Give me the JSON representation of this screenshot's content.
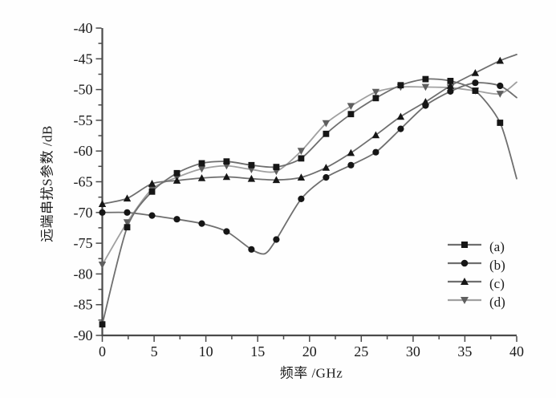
{
  "chart_data": {
    "type": "line",
    "title": "",
    "xlabel": "频率 /GHz",
    "ylabel": "远端串扰S参数 /dB",
    "xlim": [
      0,
      40
    ],
    "ylim": [
      -90,
      -40
    ],
    "x_major_ticks": [
      0,
      5,
      10,
      15,
      20,
      25,
      30,
      35,
      40
    ],
    "x_tick_labels": [
      "0",
      "5",
      "10",
      "15",
      "20",
      "25",
      "30",
      "35",
      "40"
    ],
    "x_minor_step": 2.5,
    "y_major_ticks": [
      -40,
      -45,
      -50,
      -55,
      -60,
      -65,
      -70,
      -75,
      -80,
      -85,
      -90
    ],
    "y_tick_labels": [
      "-40",
      "-45",
      "-50",
      "-55",
      "-60",
      "-65",
      "-70",
      "-75",
      "-80",
      "-85",
      "-90"
    ],
    "y_minor_step": 2.5,
    "grid": false,
    "legend_position": "inside-lower-right",
    "colors": {
      "axis": "#4a4a4a",
      "tick_text": "#1b1b1b",
      "dark_marker": "#161616",
      "dark_line": "#6f6f6f",
      "gray_marker": "#5f5f5f",
      "gray_line": "#a0a0a0"
    },
    "series": [
      {
        "name": "(a)",
        "marker": "square",
        "line_color": "#6f6f6f",
        "marker_color": "#161616",
        "markers": [
          [
            0,
            -88.2
          ],
          [
            2.4,
            -72.4
          ],
          [
            4.8,
            -66.6
          ],
          [
            7.2,
            -63.6
          ],
          [
            9.6,
            -62.0
          ],
          [
            12,
            -61.7
          ],
          [
            14.4,
            -62.3
          ],
          [
            16.8,
            -62.6
          ],
          [
            19.2,
            -61.2
          ],
          [
            21.6,
            -57.2
          ],
          [
            24,
            -54.0
          ],
          [
            26.4,
            -51.4
          ],
          [
            28.8,
            -49.3
          ],
          [
            31.2,
            -48.3
          ],
          [
            33.6,
            -48.6
          ],
          [
            36,
            -50.2
          ],
          [
            38.4,
            -55.4
          ]
        ],
        "line": [
          [
            0,
            -88.2
          ],
          [
            2.4,
            -72.4
          ],
          [
            4.8,
            -66.6
          ],
          [
            7.2,
            -63.6
          ],
          [
            9.6,
            -62.0
          ],
          [
            12,
            -61.7
          ],
          [
            14.4,
            -62.3
          ],
          [
            16.8,
            -62.6
          ],
          [
            19.2,
            -61.2
          ],
          [
            21.6,
            -57.2
          ],
          [
            24,
            -54.0
          ],
          [
            26.4,
            -51.4
          ],
          [
            28.8,
            -49.3
          ],
          [
            31.2,
            -48.3
          ],
          [
            33.6,
            -48.6
          ],
          [
            36,
            -50.2
          ],
          [
            38.4,
            -55.4
          ],
          [
            40,
            -64.5
          ]
        ]
      },
      {
        "name": "(b)",
        "marker": "circle",
        "line_color": "#6f6f6f",
        "marker_color": "#161616",
        "markers": [
          [
            0,
            -70.0
          ],
          [
            2.4,
            -70.0
          ],
          [
            4.8,
            -70.5
          ],
          [
            7.2,
            -71.1
          ],
          [
            9.6,
            -71.8
          ],
          [
            12,
            -73.1
          ],
          [
            14.4,
            -76.0
          ],
          [
            16.8,
            -74.4
          ],
          [
            19.2,
            -67.8
          ],
          [
            21.6,
            -64.3
          ],
          [
            24,
            -62.3
          ],
          [
            26.4,
            -60.2
          ],
          [
            28.8,
            -56.4
          ],
          [
            31.2,
            -52.6
          ],
          [
            33.6,
            -50.3
          ],
          [
            36,
            -48.9
          ],
          [
            38.4,
            -49.4
          ]
        ],
        "line": [
          [
            0,
            -70.0
          ],
          [
            2.4,
            -70.0
          ],
          [
            4.8,
            -70.5
          ],
          [
            7.2,
            -71.1
          ],
          [
            9.6,
            -71.8
          ],
          [
            12,
            -73.1
          ],
          [
            14.4,
            -76.0
          ],
          [
            15.7,
            -76.7
          ],
          [
            16.8,
            -74.4
          ],
          [
            19.2,
            -67.8
          ],
          [
            21.6,
            -64.3
          ],
          [
            24,
            -62.3
          ],
          [
            26.4,
            -60.2
          ],
          [
            28.8,
            -56.4
          ],
          [
            31.2,
            -52.6
          ],
          [
            33.6,
            -50.3
          ],
          [
            36,
            -48.9
          ],
          [
            38.4,
            -49.4
          ],
          [
            40,
            -51.3
          ]
        ]
      },
      {
        "name": "(c)",
        "marker": "triangle-up",
        "line_color": "#6f6f6f",
        "marker_color": "#161616",
        "markers": [
          [
            0,
            -68.6
          ],
          [
            2.4,
            -67.7
          ],
          [
            4.8,
            -65.3
          ],
          [
            7.2,
            -64.8
          ],
          [
            9.6,
            -64.4
          ],
          [
            12,
            -64.2
          ],
          [
            14.4,
            -64.5
          ],
          [
            16.8,
            -64.7
          ],
          [
            19.2,
            -64.3
          ],
          [
            21.6,
            -62.7
          ],
          [
            24,
            -60.3
          ],
          [
            26.4,
            -57.4
          ],
          [
            28.8,
            -54.4
          ],
          [
            31.2,
            -52.0
          ],
          [
            33.6,
            -49.4
          ],
          [
            36,
            -47.3
          ],
          [
            38.4,
            -45.3
          ]
        ],
        "line": [
          [
            0,
            -68.6
          ],
          [
            2.4,
            -67.7
          ],
          [
            4.8,
            -65.3
          ],
          [
            7.2,
            -64.8
          ],
          [
            9.6,
            -64.4
          ],
          [
            12,
            -64.2
          ],
          [
            14.4,
            -64.5
          ],
          [
            16.8,
            -64.7
          ],
          [
            19.2,
            -64.3
          ],
          [
            21.6,
            -62.7
          ],
          [
            24,
            -60.3
          ],
          [
            26.4,
            -57.4
          ],
          [
            28.8,
            -54.4
          ],
          [
            31.2,
            -52.0
          ],
          [
            33.6,
            -49.4
          ],
          [
            36,
            -47.3
          ],
          [
            38.4,
            -45.3
          ],
          [
            40,
            -44.3
          ]
        ]
      },
      {
        "name": "(d)",
        "marker": "triangle-down",
        "line_color": "#a0a0a0",
        "marker_color": "#5f5f5f",
        "markers": [
          [
            0,
            -78.5
          ],
          [
            2.4,
            -71.6
          ],
          [
            4.8,
            -66.2
          ],
          [
            7.2,
            -64.3
          ],
          [
            9.6,
            -62.9
          ],
          [
            12,
            -62.4
          ],
          [
            14.4,
            -63.0
          ],
          [
            16.8,
            -63.3
          ],
          [
            19.2,
            -60.0
          ],
          [
            21.6,
            -55.5
          ],
          [
            24,
            -52.7
          ],
          [
            26.4,
            -50.4
          ],
          [
            28.8,
            -49.6
          ],
          [
            31.2,
            -49.6
          ],
          [
            33.6,
            -49.7
          ],
          [
            36,
            -50.2
          ],
          [
            38.4,
            -50.7
          ]
        ],
        "line": [
          [
            0,
            -78.5
          ],
          [
            2.4,
            -71.6
          ],
          [
            4.8,
            -66.2
          ],
          [
            7.2,
            -64.3
          ],
          [
            9.6,
            -62.9
          ],
          [
            12,
            -62.4
          ],
          [
            14.4,
            -63.0
          ],
          [
            16.8,
            -63.3
          ],
          [
            19.2,
            -60.0
          ],
          [
            21.6,
            -55.5
          ],
          [
            24,
            -52.7
          ],
          [
            26.4,
            -50.4
          ],
          [
            28.8,
            -49.6
          ],
          [
            31.2,
            -49.6
          ],
          [
            33.6,
            -49.7
          ],
          [
            36,
            -50.2
          ],
          [
            38.4,
            -50.7
          ],
          [
            40,
            -48.8
          ]
        ]
      }
    ]
  }
}
